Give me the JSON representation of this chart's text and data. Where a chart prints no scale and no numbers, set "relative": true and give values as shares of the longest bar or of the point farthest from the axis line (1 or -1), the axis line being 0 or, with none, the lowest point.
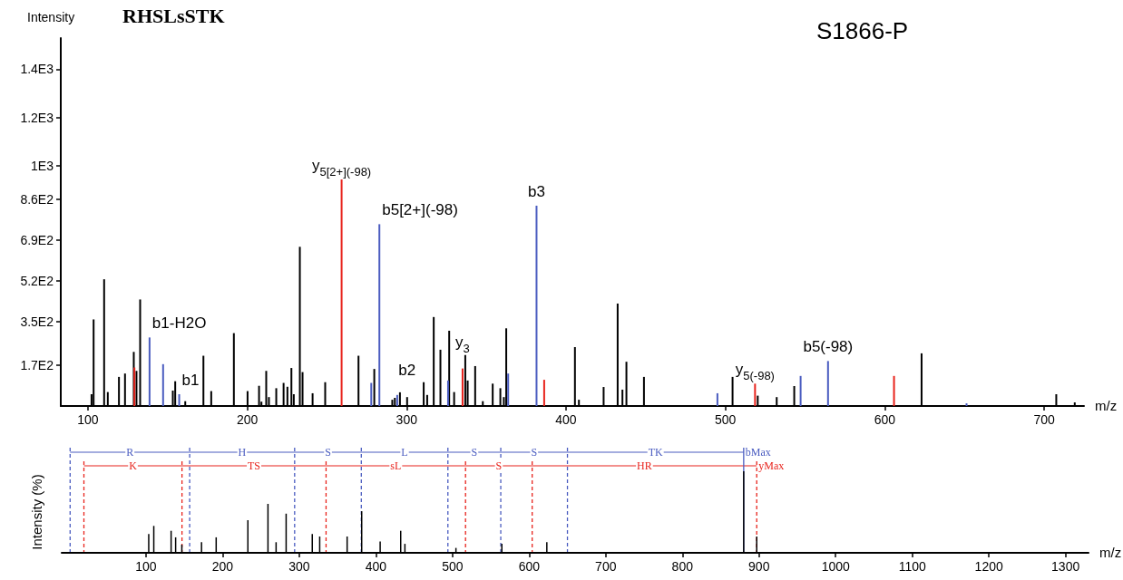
{
  "chart_data": [
    {
      "type": "bar",
      "title": "S1866-P",
      "xlabel": "m/z",
      "ylabel": "Intensity",
      "annotations": [
        "RHSLsSTK",
        {
          "text": "y$_{5[2+](-98)}$",
          "x": 259.2,
          "y": 942
        },
        {
          "text": "b5[2+](-98)",
          "x": 282.9,
          "y": 756
        },
        {
          "text": "b3",
          "x": 381.5,
          "y": 833
        },
        {
          "text": "b1-H2O",
          "x": 138.7,
          "y": 285
        },
        {
          "text": "b1",
          "x": 157.3,
          "y": 49
        },
        {
          "text": "b2",
          "x": 300.3,
          "y": 37
        },
        {
          "text": "y$_{3}$",
          "x": 335.1,
          "y": 156
        },
        {
          "text": "y$_{5(-98)}$",
          "x": 518.6,
          "y": 93
        },
        {
          "text": "b5(-98)",
          "x": 564.4,
          "y": 187
        }
      ],
      "xlim": [
        83,
        725
      ],
      "xticks": [
        100,
        200,
        300,
        400,
        500,
        600,
        700
      ],
      "ylim": [
        0,
        1530
      ],
      "yticks": [
        {
          "value": 170,
          "label": "1.7E2"
        },
        {
          "value": 350,
          "label": "3.5E2"
        },
        {
          "value": 520,
          "label": "5.2E2"
        },
        {
          "value": 690,
          "label": "6.9E2"
        },
        {
          "value": 860,
          "label": "8.6E2"
        },
        {
          "value": 1000,
          "label": "1E3"
        },
        {
          "value": 1200,
          "label": "1.2E3"
        },
        {
          "value": 1400,
          "label": "1.4E3"
        }
      ],
      "series": [
        {
          "color": "#000000",
          "x": [
            102.3,
            103.6,
            110.2,
            112.5,
            119.5,
            123.3,
            128.8,
            130.5,
            132.8,
            146.8,
            153.3,
            154.8,
            161.1,
            172.5,
            177.4,
            191.6,
            200.2,
            207.4,
            208.9,
            211.9,
            213.6,
            218.2,
            222.8,
            225.2,
            227.7,
            229.2,
            233.0,
            234.7,
            241.0,
            248.9,
            269.8,
            279.7,
            291.0,
            292.6,
            295.8,
            300.3,
            310.7,
            312.9,
            317.0,
            321.2,
            326.7,
            329.8,
            336.8,
            338.3,
            343.0,
            347.8,
            354.0,
            358.8,
            361.0,
            362.5,
            405.6,
            408.1,
            423.6,
            432.4,
            435.4,
            437.9,
            448.9,
            504.5,
            520.3,
            532.2,
            543.2,
            623.1,
            707.6,
            719.2
          ],
          "values": [
            49,
            360,
            527,
            58,
            121,
            135,
            225,
            146,
            443,
            null,
            64,
            103,
            20,
            209,
            62,
            303,
            62,
            84,
            18,
            146,
            37,
            74,
            96,
            80,
            158,
            49,
            662,
            141,
            53,
            99,
            209,
            154,
            26,
            34,
            57,
            37,
            99,
            46,
            370,
            234,
            313,
            58,
            212,
            106,
            166,
            20,
            93,
            74,
            37,
            323,
            245,
            26,
            79,
            426,
            68,
            184,
            121,
            121,
            43,
            37,
            83,
            219,
            49,
            15
          ]
        },
        {
          "color": "#4a5cc0",
          "x": [
            138.7,
            147.2,
            157.3,
            277.8,
            282.9,
            294.1,
            326.0,
            363.7,
            381.5,
            495.0,
            547.2,
            564.4,
            651.3
          ],
          "values": [
            285,
            174,
            49,
            96,
            756,
            46,
            106,
            135,
            833,
            53,
            125,
            187,
            11
          ]
        },
        {
          "color": "#e8231c",
          "x": [
            129.2,
            259.2,
            335.1,
            386.3,
            518.6,
            605.8
          ],
          "values": [
            160,
            942,
            156,
            109,
            93,
            125
          ]
        }
      ]
    },
    {
      "type": "bar",
      "relative": true,
      "xlabel": "m/z",
      "ylabel": "Intensity (%)",
      "tick_labels": "x",
      "annotations": [
        {
          "text": "bMax",
          "x": 880
        },
        {
          "text": "yMax",
          "x": 897
        }
      ],
      "xlim": [
        -10,
        1330
      ],
      "xticks": [
        100,
        200,
        300,
        400,
        500,
        600,
        700,
        800,
        900,
        1000,
        1100,
        1200,
        1300
      ],
      "series": [
        {
          "color": "#000000",
          "x": [
            103.6,
            110.2,
            132.8,
            138.7,
            146.8,
            172.5,
            191.6,
            233.0,
            259.2,
            269.8,
            282.9,
            317.0,
            326.7,
            362.5,
            381.5,
            405.6,
            432.4,
            437.9,
            504.5,
            564.4,
            623.1,
            880,
            897
          ],
          "values": [
            0.23,
            0.33,
            0.27,
            0.19,
            0.1,
            0.13,
            0.19,
            0.4,
            0.6,
            0.13,
            0.48,
            0.23,
            0.2,
            0.2,
            0.51,
            0.14,
            0.27,
            0.11,
            0.06,
            0.11,
            0.13,
            1,
            0.2
          ]
        }
      ],
      "ref_lines": [
        {
          "axis": "x",
          "value": 1,
          "color": "#4a5cc0",
          "line_style": "dashed"
        },
        {
          "axis": "x",
          "value": 157,
          "color": "#4a5cc0",
          "line_style": "dashed",
          "label": "R"
        },
        {
          "axis": "x",
          "value": 294,
          "color": "#4a5cc0",
          "line_style": "dashed",
          "label": "H"
        },
        {
          "axis": "x",
          "value": 381,
          "color": "#4a5cc0",
          "line_style": "dashed",
          "label": "S"
        },
        {
          "axis": "x",
          "value": 494,
          "color": "#4a5cc0",
          "line_style": "dashed",
          "label": "L"
        },
        {
          "axis": "x",
          "value": 563,
          "color": "#4a5cc0",
          "line_style": "dashed",
          "label": "S"
        },
        {
          "axis": "x",
          "value": 650,
          "color": "#4a5cc0",
          "line_style": "dashed",
          "label": "S"
        },
        {
          "axis": "x",
          "value": 880,
          "color": "#4a5cc0",
          "line_style": "solid",
          "label": "TK"
        },
        {
          "axis": "x",
          "value": 19,
          "color": "#e8231c",
          "line_style": "dashed"
        },
        {
          "axis": "x",
          "value": 147,
          "color": "#e8231c",
          "line_style": "dashed",
          "label": "K"
        },
        {
          "axis": "x",
          "value": 335,
          "color": "#e8231c",
          "line_style": "dashed",
          "label": "TS"
        },
        {
          "axis": "x",
          "value": 517,
          "color": "#e8231c",
          "line_style": "dashed",
          "label": "sL"
        },
        {
          "axis": "x",
          "value": 604,
          "color": "#e8231c",
          "line_style": "dashed",
          "label": "S"
        },
        {
          "axis": "x",
          "value": 897,
          "color": "#e8231c",
          "line_style": "dashed",
          "label": "HR"
        }
      ]
    }
  ]
}
